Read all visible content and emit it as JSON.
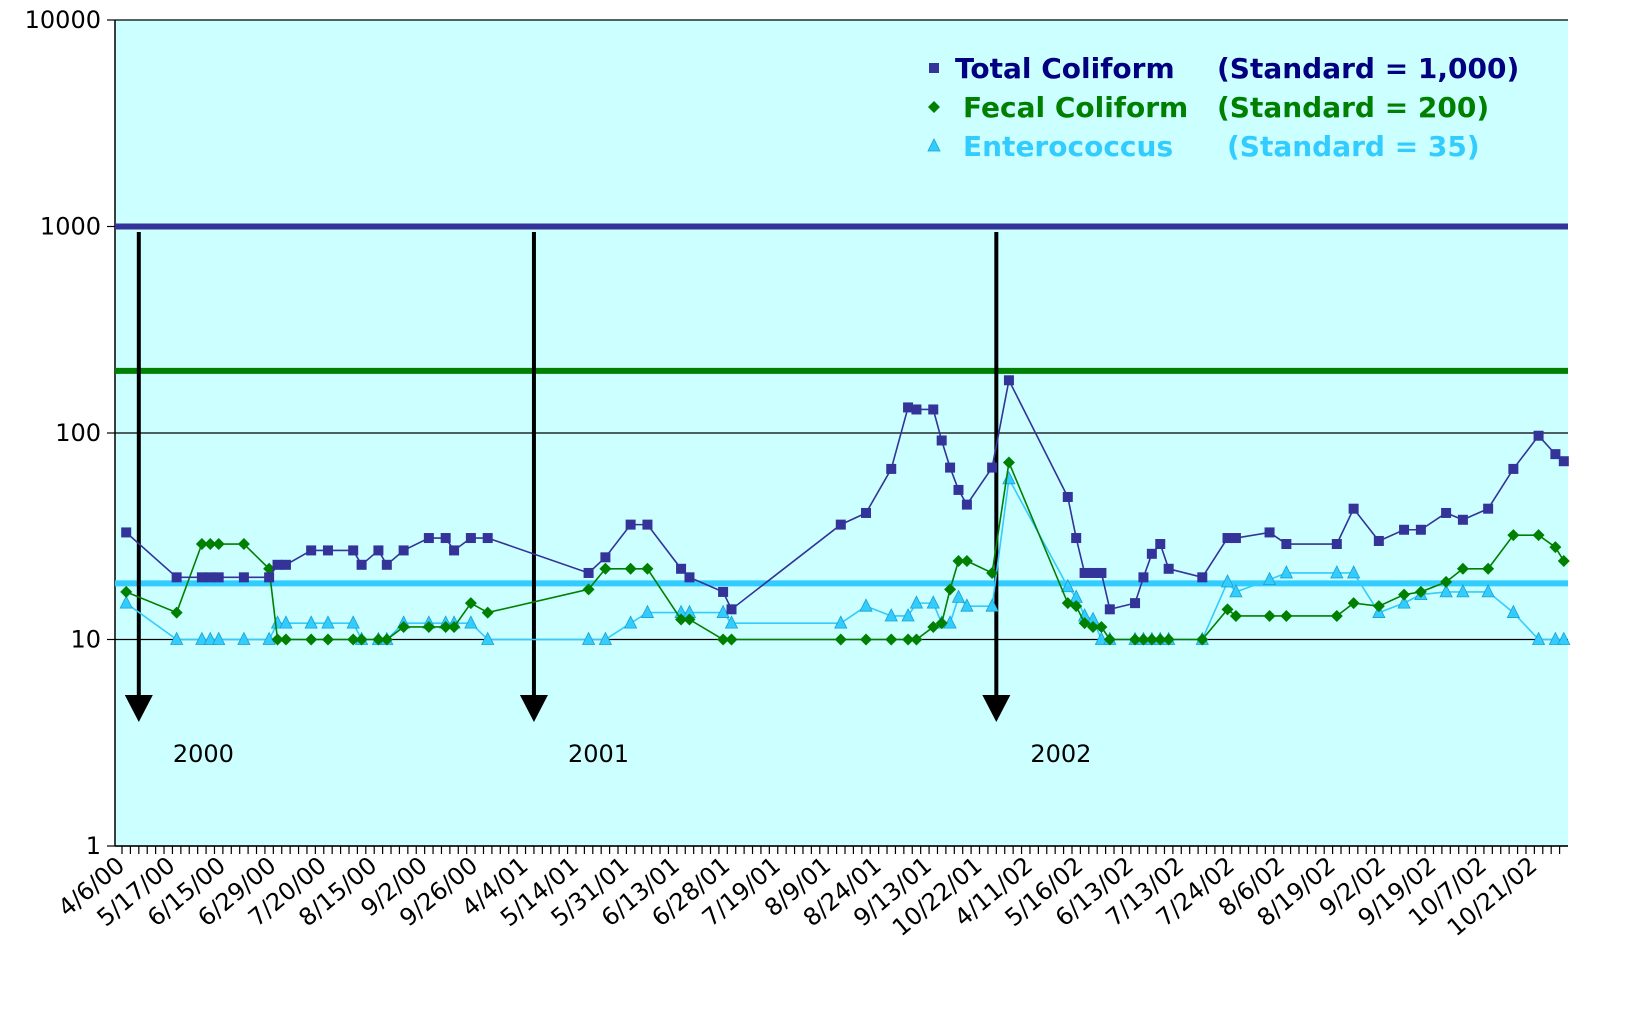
{
  "chart_data": {
    "type": "line",
    "log_scale": true,
    "grid": true,
    "connect_gaps": true,
    "background": "#ccffff",
    "ylim": [
      1,
      10000
    ],
    "yticks": [
      1,
      10,
      100,
      1000,
      10000
    ],
    "legend": "top-right",
    "categories": [
      "4/6/00",
      null,
      null,
      null,
      null,
      null,
      "5/17/00",
      null,
      null,
      null,
      null,
      null,
      "6/15/00",
      null,
      null,
      null,
      null,
      null,
      "6/29/00",
      null,
      null,
      null,
      null,
      null,
      "7/20/00",
      null,
      null,
      null,
      null,
      null,
      "8/15/00",
      null,
      null,
      null,
      null,
      null,
      "9/2/00",
      null,
      null,
      null,
      null,
      null,
      "9/26/00",
      null,
      null,
      null,
      null,
      null,
      "4/4/01",
      null,
      null,
      null,
      null,
      null,
      "5/14/01",
      null,
      null,
      null,
      null,
      null,
      "5/31/01",
      null,
      null,
      null,
      null,
      null,
      "6/13/01",
      null,
      null,
      null,
      null,
      null,
      "6/28/01",
      null,
      null,
      null,
      null,
      null,
      "7/19/01",
      null,
      null,
      null,
      null,
      null,
      "8/9/01",
      null,
      null,
      null,
      null,
      null,
      "8/24/01",
      null,
      null,
      null,
      null,
      null,
      "9/13/01",
      null,
      null,
      null,
      null,
      null,
      "10/22/01",
      null,
      null,
      null,
      null,
      null,
      "4/11/02",
      null,
      null,
      null,
      null,
      null,
      "5/16/02",
      null,
      null,
      null,
      null,
      null,
      "6/13/02",
      null,
      null,
      null,
      null,
      null,
      "7/13/02",
      null,
      null,
      null,
      null,
      null,
      "7/24/02",
      null,
      null,
      null,
      null,
      null,
      "8/6/02",
      null,
      null,
      null,
      null,
      null,
      "8/19/02",
      null,
      null,
      null,
      null,
      null,
      "9/2/02",
      null,
      null,
      null,
      null,
      null,
      "9/19/02",
      null,
      null,
      null,
      null,
      null,
      "10/7/02",
      null,
      null,
      null,
      null,
      null,
      "10/21/02",
      null,
      null,
      null
    ],
    "series": [
      {
        "name": "Total Coliform",
        "standard_label": "(Standard = 1,000)",
        "color": "#333399",
        "text_color": "#000080",
        "marker": "square",
        "values": [
          33,
          null,
          null,
          null,
          null,
          null,
          20,
          null,
          null,
          20,
          20,
          20,
          null,
          null,
          20,
          null,
          null,
          20,
          23,
          23,
          null,
          null,
          27,
          null,
          27,
          null,
          null,
          27,
          23,
          null,
          27,
          23,
          null,
          27,
          null,
          null,
          31,
          null,
          31,
          27,
          null,
          31,
          null,
          31,
          null,
          null,
          null,
          null,
          null,
          null,
          null,
          null,
          null,
          null,
          null,
          21,
          null,
          25,
          null,
          null,
          36,
          null,
          36,
          null,
          null,
          null,
          22,
          20,
          null,
          null,
          null,
          17,
          14,
          null,
          null,
          null,
          null,
          null,
          null,
          null,
          null,
          null,
          null,
          null,
          null,
          36,
          null,
          null,
          41,
          null,
          null,
          67,
          null,
          133,
          130,
          null,
          130,
          92,
          68,
          53,
          45,
          null,
          null,
          68,
          null,
          180,
          null,
          null,
          null,
          null,
          null,
          null,
          49,
          31,
          21,
          21,
          21,
          14,
          null,
          null,
          15,
          20,
          26,
          29,
          22,
          null,
          null,
          null,
          20,
          null,
          null,
          31,
          31,
          null,
          null,
          null,
          33,
          null,
          29,
          null,
          null,
          null,
          null,
          null,
          29,
          null,
          43,
          null,
          null,
          30,
          null,
          null,
          34,
          null,
          34,
          null,
          null,
          41,
          null,
          38,
          null,
          null,
          43,
          null,
          null,
          67,
          null,
          null,
          97,
          null,
          79,
          73
        ]
      },
      {
        "name": "Fecal Coliform",
        "standard_label": "(Standard = 200)",
        "color": "#008000",
        "text_color": "#008000",
        "marker": "diamond",
        "values": [
          17,
          null,
          null,
          null,
          null,
          null,
          13.5,
          null,
          null,
          29,
          29,
          29,
          null,
          null,
          29,
          null,
          null,
          22,
          10,
          10,
          null,
          null,
          10,
          null,
          10,
          null,
          null,
          10,
          10,
          null,
          10,
          10,
          null,
          11.5,
          null,
          null,
          11.5,
          null,
          11.5,
          11.5,
          null,
          15,
          null,
          13.5,
          null,
          null,
          null,
          null,
          null,
          null,
          null,
          null,
          null,
          null,
          null,
          17.5,
          null,
          22,
          null,
          null,
          22,
          null,
          22,
          null,
          null,
          null,
          12.5,
          12.5,
          null,
          null,
          null,
          10,
          10,
          null,
          null,
          null,
          null,
          null,
          null,
          null,
          null,
          null,
          null,
          null,
          null,
          10,
          null,
          null,
          10,
          null,
          null,
          10,
          null,
          10,
          10,
          null,
          11.5,
          12,
          17.5,
          24,
          24,
          null,
          null,
          21,
          null,
          72,
          null,
          null,
          null,
          null,
          null,
          null,
          15,
          14.5,
          12,
          11.5,
          11.5,
          10,
          null,
          null,
          10,
          10,
          10,
          10,
          10,
          null,
          null,
          null,
          10,
          null,
          null,
          14,
          13,
          null,
          null,
          null,
          13,
          null,
          13,
          null,
          null,
          null,
          null,
          null,
          13,
          null,
          15,
          null,
          null,
          14.5,
          null,
          null,
          16.5,
          null,
          17,
          null,
          null,
          19,
          null,
          22,
          null,
          null,
          22,
          null,
          null,
          32,
          null,
          null,
          32,
          null,
          28,
          24
        ]
      },
      {
        "name": "Enterococcus",
        "standard_label": "(Standard = 35)",
        "color": "#33ccff",
        "text_color": "#33ccff",
        "marker": "triangle",
        "values": [
          15,
          null,
          null,
          null,
          null,
          null,
          10,
          null,
          null,
          10,
          10,
          10,
          null,
          null,
          10,
          null,
          null,
          10,
          12,
          12,
          null,
          null,
          12,
          null,
          12,
          null,
          null,
          12,
          10,
          null,
          10,
          10,
          null,
          12,
          null,
          null,
          12,
          null,
          12,
          12,
          null,
          12,
          null,
          10,
          null,
          null,
          null,
          null,
          null,
          null,
          null,
          null,
          null,
          null,
          null,
          10,
          null,
          10,
          null,
          null,
          12,
          null,
          13.5,
          null,
          null,
          null,
          13.5,
          13.5,
          null,
          null,
          null,
          13.5,
          12,
          null,
          null,
          null,
          null,
          null,
          null,
          null,
          null,
          null,
          null,
          null,
          null,
          12,
          null,
          null,
          14.5,
          null,
          null,
          13,
          null,
          13,
          15,
          null,
          15,
          12,
          12,
          16,
          14.5,
          null,
          null,
          14.5,
          null,
          60,
          null,
          null,
          null,
          null,
          null,
          null,
          18,
          16,
          13,
          12.5,
          10,
          10,
          null,
          null,
          10,
          10,
          10,
          10,
          10,
          null,
          null,
          null,
          10,
          null,
          null,
          19,
          17,
          null,
          null,
          null,
          19.5,
          null,
          21,
          null,
          null,
          null,
          null,
          null,
          21,
          null,
          21,
          null,
          null,
          13.5,
          null,
          null,
          15,
          null,
          16.5,
          null,
          null,
          17,
          null,
          17,
          null,
          null,
          17,
          null,
          null,
          13.5,
          null,
          null,
          10,
          null,
          10,
          10
        ]
      }
    ],
    "reference_lines": [
      {
        "value": 1000,
        "color": "#333399"
      },
      {
        "value": 200,
        "color": "#008000"
      },
      {
        "value": 18.7,
        "color": "#33ccff"
      }
    ],
    "annotations": [
      {
        "text": "2000"
      },
      {
        "text": "2001"
      },
      {
        "text": "2002"
      }
    ]
  }
}
